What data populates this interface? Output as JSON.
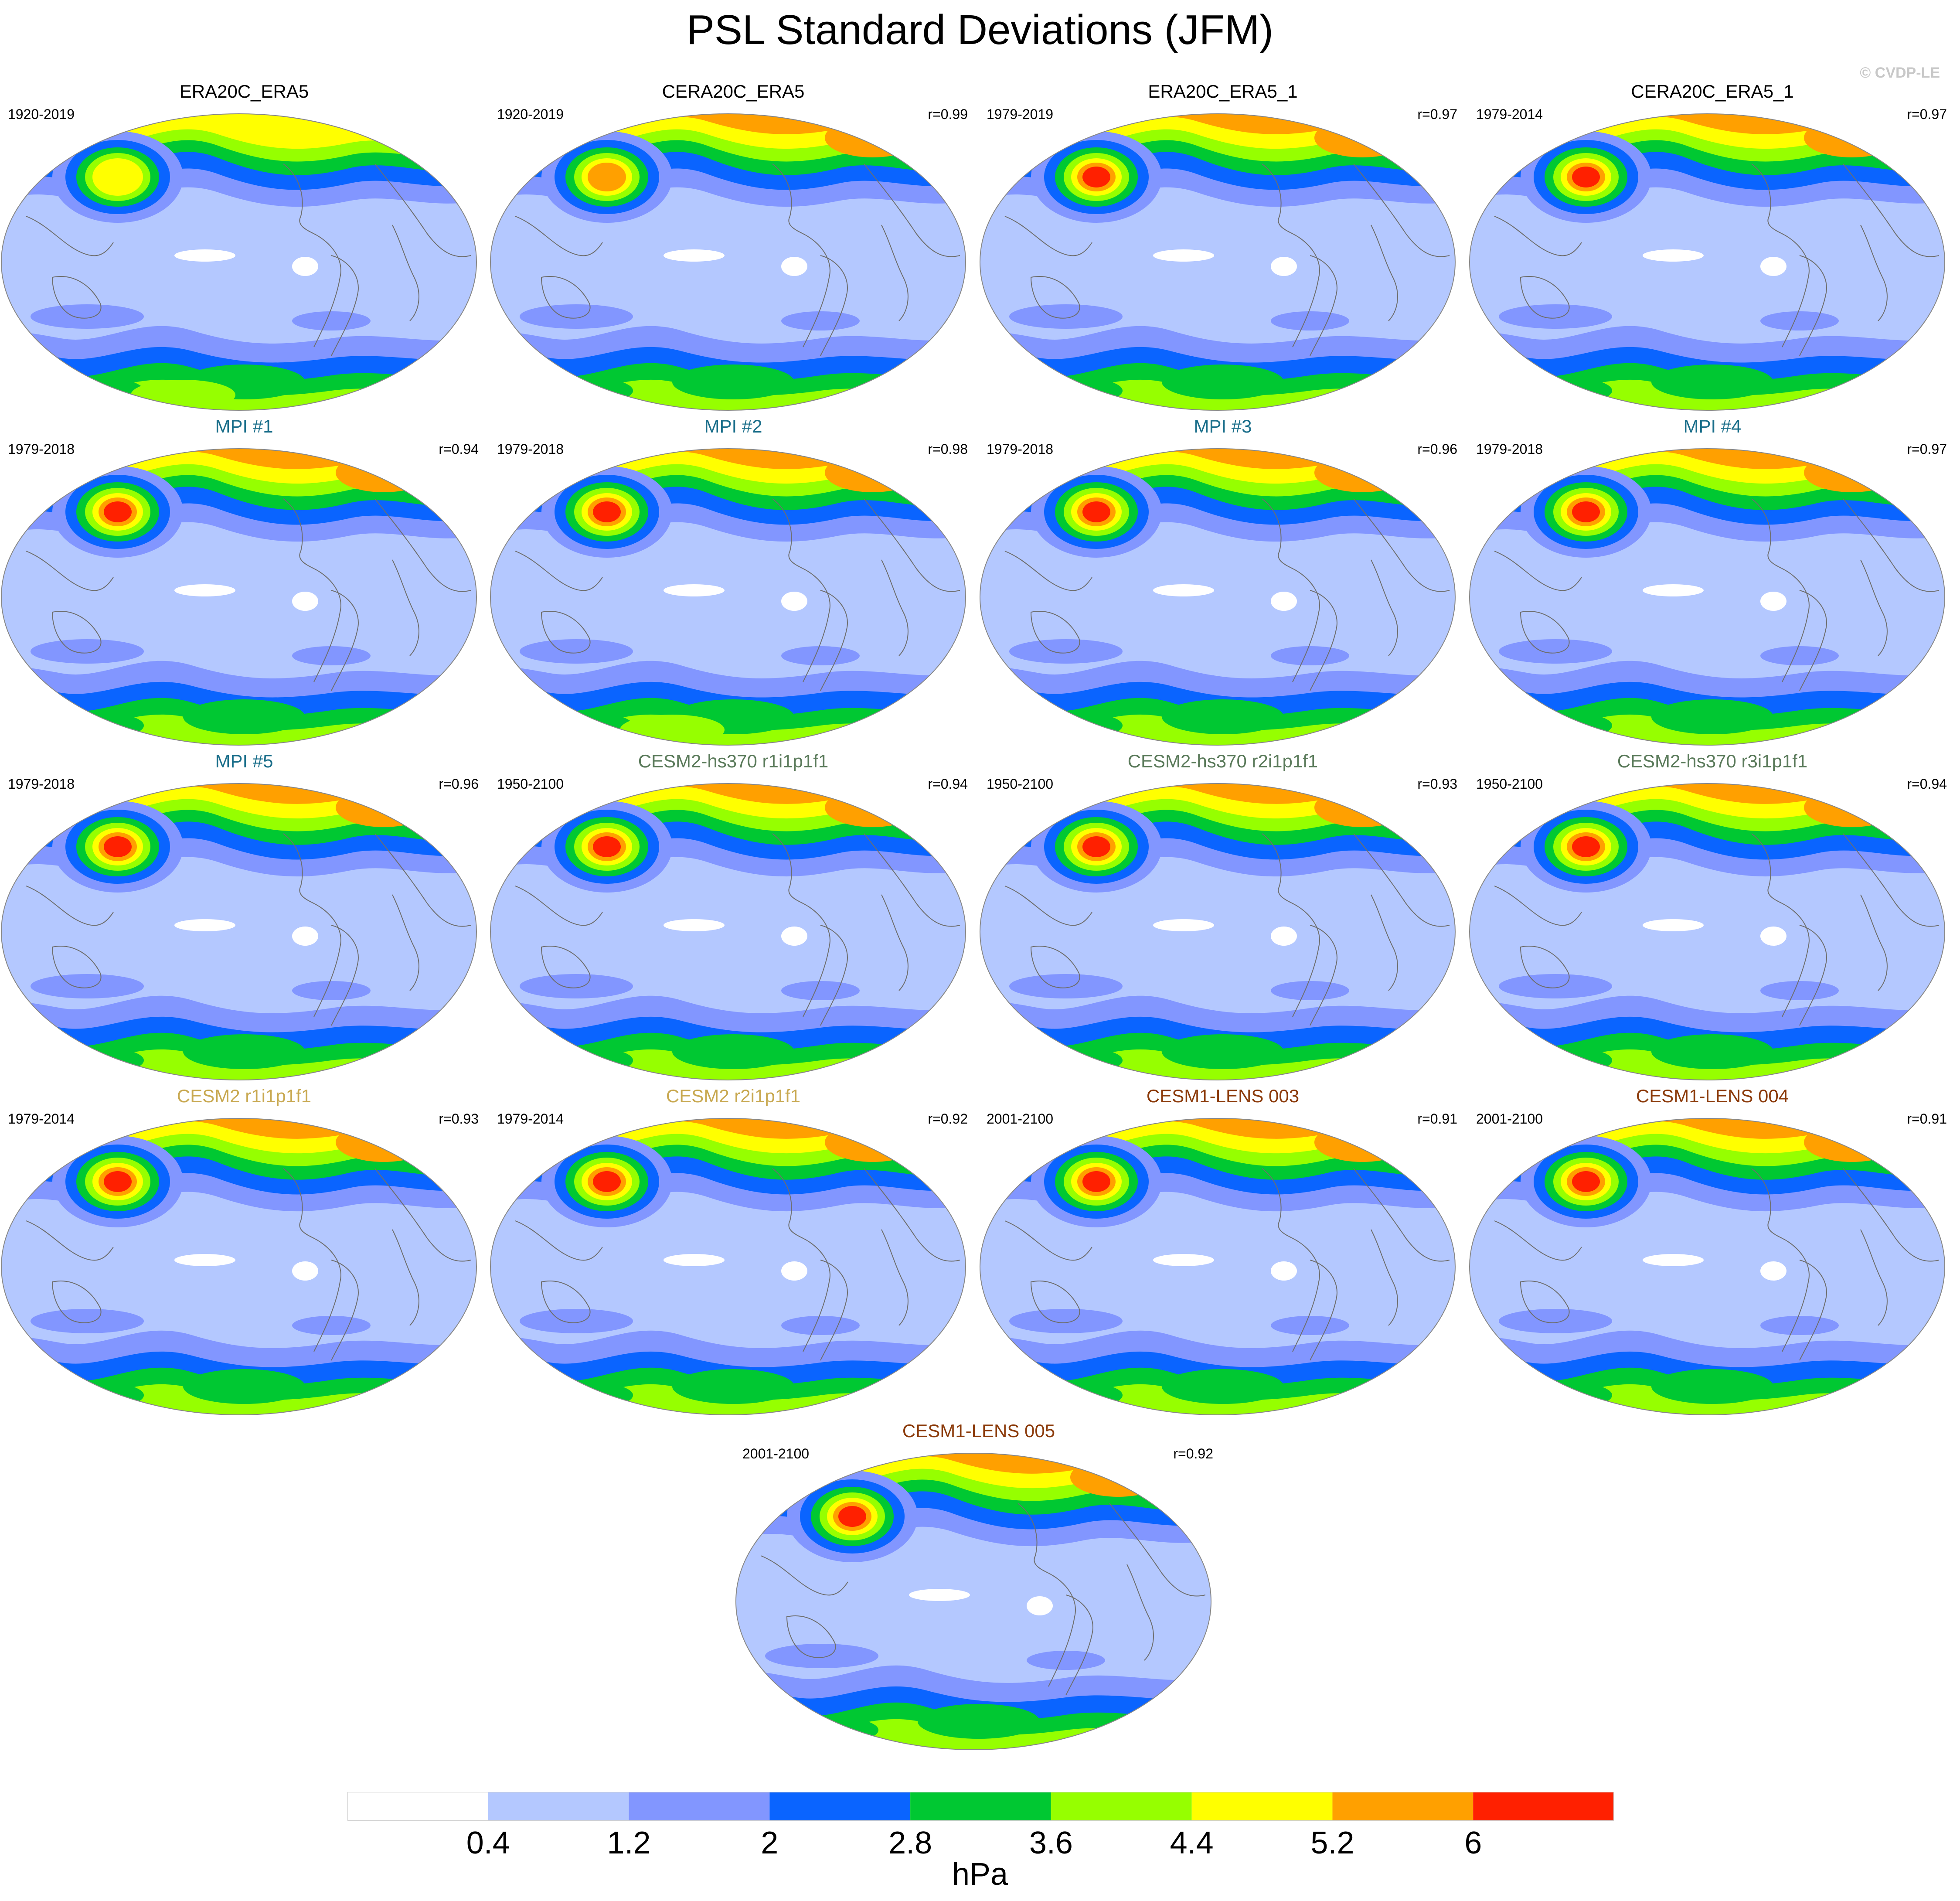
{
  "title": "PSL Standard Deviations (JFM)",
  "credit": "© CVDP-LE",
  "units": "hPa",
  "colorbar": {
    "levels": [
      "0.4",
      "1.2",
      "2",
      "2.8",
      "3.6",
      "4.4",
      "5.2",
      "6"
    ],
    "colors": [
      "#ffffff",
      "#b4c8ff",
      "#8296ff",
      "#0a64ff",
      "#00c832",
      "#96ff00",
      "#ffff00",
      "#ffa000",
      "#ff2000"
    ]
  },
  "panels": [
    {
      "title": "ERA20C_ERA5",
      "years": "1920-2019",
      "r": "",
      "color": "#000000",
      "max_level": 6,
      "hot_south": true
    },
    {
      "title": "CERA20C_ERA5",
      "years": "1920-2019",
      "r": "r=0.99",
      "color": "#000000",
      "max_level": 7,
      "hot_south": false
    },
    {
      "title": "ERA20C_ERA5_1",
      "years": "1979-2019",
      "r": "r=0.97",
      "color": "#000000",
      "max_level": 8,
      "hot_south": false
    },
    {
      "title": "CERA20C_ERA5_1",
      "years": "1979-2014",
      "r": "r=0.97",
      "color": "#000000",
      "max_level": 8,
      "hot_south": false
    },
    {
      "title": "MPI #1",
      "years": "1979-2018",
      "r": "r=0.94",
      "color": "#1a6e8a",
      "max_level": 8,
      "hot_south": false
    },
    {
      "title": "MPI #2",
      "years": "1979-2018",
      "r": "r=0.98",
      "color": "#1a6e8a",
      "max_level": 8,
      "hot_south": true
    },
    {
      "title": "MPI #3",
      "years": "1979-2018",
      "r": "r=0.96",
      "color": "#1a6e8a",
      "max_level": 8,
      "hot_south": false
    },
    {
      "title": "MPI #4",
      "years": "1979-2018",
      "r": "r=0.97",
      "color": "#1a6e8a",
      "max_level": 8,
      "hot_south": false
    },
    {
      "title": "MPI #5",
      "years": "1979-2018",
      "r": "r=0.96",
      "color": "#1a6e8a",
      "max_level": 8,
      "hot_south": false
    },
    {
      "title": "CESM2-hs370 r1i1p1f1",
      "years": "1950-2100",
      "r": "r=0.94",
      "color": "#5a7a5a",
      "max_level": 8,
      "hot_south": false
    },
    {
      "title": "CESM2-hs370 r2i1p1f1",
      "years": "1950-2100",
      "r": "r=0.93",
      "color": "#5a7a5a",
      "max_level": 8,
      "hot_south": false
    },
    {
      "title": "CESM2-hs370 r3i1p1f1",
      "years": "1950-2100",
      "r": "r=0.94",
      "color": "#5a7a5a",
      "max_level": 8,
      "hot_south": false
    },
    {
      "title": "CESM2 r1i1p1f1",
      "years": "1979-2014",
      "r": "r=0.93",
      "color": "#c8a850",
      "max_level": 8,
      "hot_south": false
    },
    {
      "title": "CESM2 r2i1p1f1",
      "years": "1979-2014",
      "r": "r=0.92",
      "color": "#c8a850",
      "max_level": 8,
      "hot_south": false
    },
    {
      "title": "CESM1-LENS 003",
      "years": "2001-2100",
      "r": "r=0.91",
      "color": "#8b3a0a",
      "max_level": 8,
      "hot_south": false
    },
    {
      "title": "CESM1-LENS 004",
      "years": "2001-2100",
      "r": "r=0.91",
      "color": "#8b3a0a",
      "max_level": 8,
      "hot_south": false
    },
    {
      "title": "CESM1-LENS 005",
      "years": "2001-2100",
      "r": "r=0.92",
      "color": "#8b3a0a",
      "max_level": 8,
      "hot_south": false
    }
  ]
}
